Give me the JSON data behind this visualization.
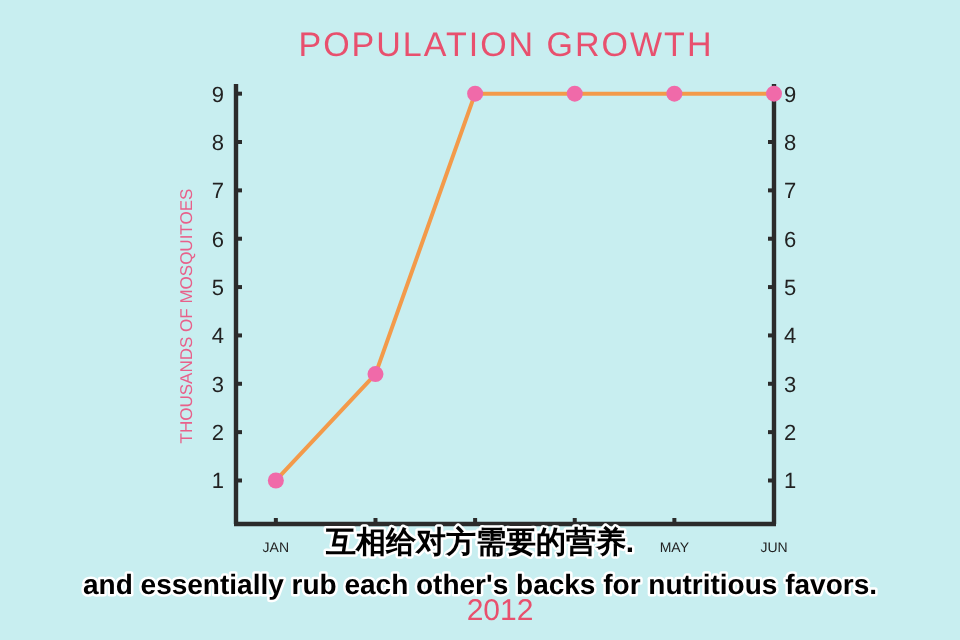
{
  "chart_data": {
    "type": "line",
    "title": "POPULATION GROWTH",
    "ylabel": "THOUSANDS OF MOSQUITOES",
    "xlabel": "2012",
    "categories": [
      "JAN",
      null,
      null,
      null,
      "MAY",
      "JUN"
    ],
    "series": [
      {
        "color": "#f39a4a",
        "colors": [
          "#f06aa9",
          "#f06aa9",
          "#f06aa9",
          "#f06aa9",
          "#f06aa9",
          "#f06aa9"
        ],
        "values": [
          1,
          3.2,
          9,
          9,
          9,
          9
        ]
      }
    ],
    "ylim": [
      0.1,
      9.2
    ],
    "yticks": [
      1,
      2,
      3,
      4,
      5,
      6,
      7,
      8,
      9
    ],
    "y2lim": [
      0.1,
      9.2
    ],
    "y2ticks": [
      1,
      2,
      3,
      4,
      5,
      6,
      7,
      8,
      9
    ],
    "marker": "circle",
    "grid": false,
    "annotations": [
      "互相给对方需要的营养.",
      "and essentially rub each other's backs for nutritious favors."
    ]
  }
}
